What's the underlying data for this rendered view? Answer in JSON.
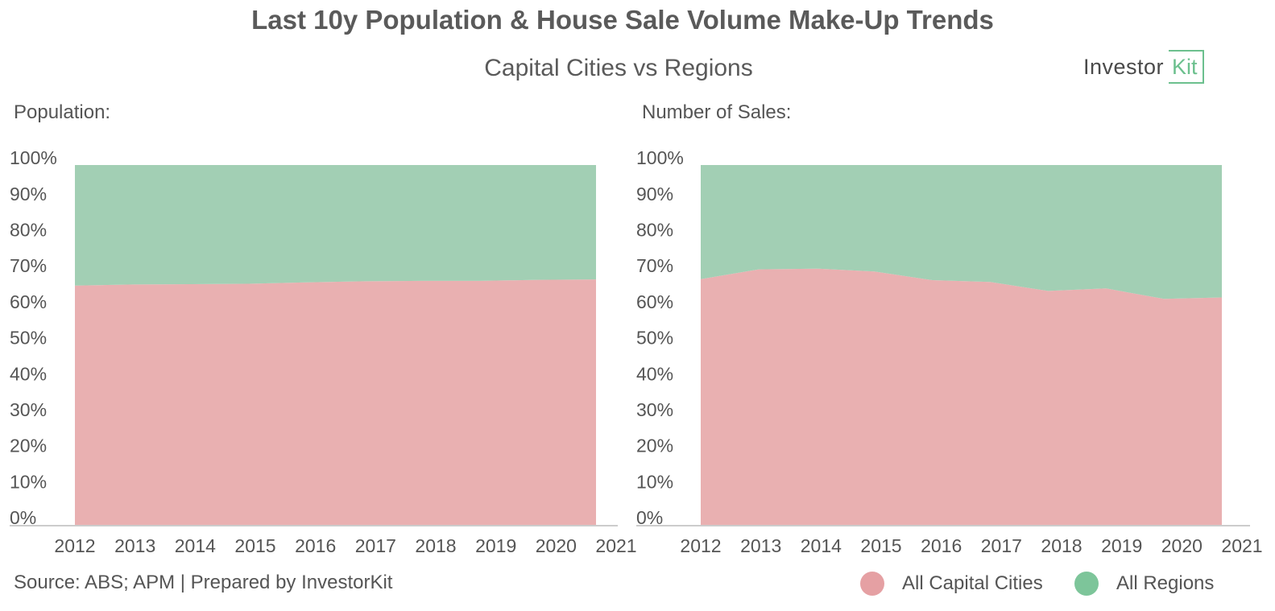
{
  "title": "Last 10y Population & House Sale Volume Make-Up Trends",
  "subtitle": "Capital Cities vs Regions",
  "logo": {
    "part1": "Investor",
    "part2": "Kit"
  },
  "source": "Source: ABS; APM | Prepared by InvestorKit",
  "legend": [
    {
      "label": "All Capital Cities",
      "color": "#e5a0a3"
    },
    {
      "label": "All Regions",
      "color": "#7dc59a"
    }
  ],
  "colors": {
    "capital": "#e9b0b1",
    "regions": "#a2cfb4",
    "axis": "#cccccc",
    "text": "#555555"
  },
  "chart_data": [
    {
      "type": "area",
      "stacked": true,
      "title": "Population:",
      "x": [
        "2012",
        "2013",
        "2014",
        "2015",
        "2016",
        "2017",
        "2018",
        "2019",
        "2020",
        "2021"
      ],
      "yticks": [
        "0%",
        "10%",
        "20%",
        "30%",
        "40%",
        "50%",
        "60%",
        "70%",
        "80%",
        "90%",
        "100%"
      ],
      "ylim": [
        0,
        100
      ],
      "series": [
        {
          "name": "All Capital Cities",
          "values": [
            66.5,
            66.8,
            66.9,
            67.0,
            67.4,
            67.7,
            67.8,
            67.8,
            68.1,
            68.2
          ]
        },
        {
          "name": "All Regions",
          "values": [
            33.5,
            33.2,
            33.1,
            33.0,
            32.6,
            32.3,
            32.2,
            32.2,
            31.9,
            31.8
          ]
        }
      ]
    },
    {
      "type": "area",
      "stacked": true,
      "title": "Number of Sales:",
      "x": [
        "2012",
        "2013",
        "2014",
        "2015",
        "2016",
        "2017",
        "2018",
        "2019",
        "2020",
        "2021"
      ],
      "yticks": [
        "0%",
        "10%",
        "20%",
        "30%",
        "40%",
        "50%",
        "60%",
        "70%",
        "80%",
        "90%",
        "100%"
      ],
      "ylim": [
        0,
        100
      ],
      "series": [
        {
          "name": "All Capital Cities",
          "values": [
            68.3,
            71.0,
            71.2,
            70.4,
            68.0,
            67.5,
            65.0,
            65.7,
            62.8,
            63.2
          ]
        },
        {
          "name": "All Regions",
          "values": [
            31.7,
            29.0,
            28.8,
            29.6,
            32.0,
            32.5,
            35.0,
            34.3,
            37.2,
            36.8
          ]
        }
      ]
    }
  ]
}
